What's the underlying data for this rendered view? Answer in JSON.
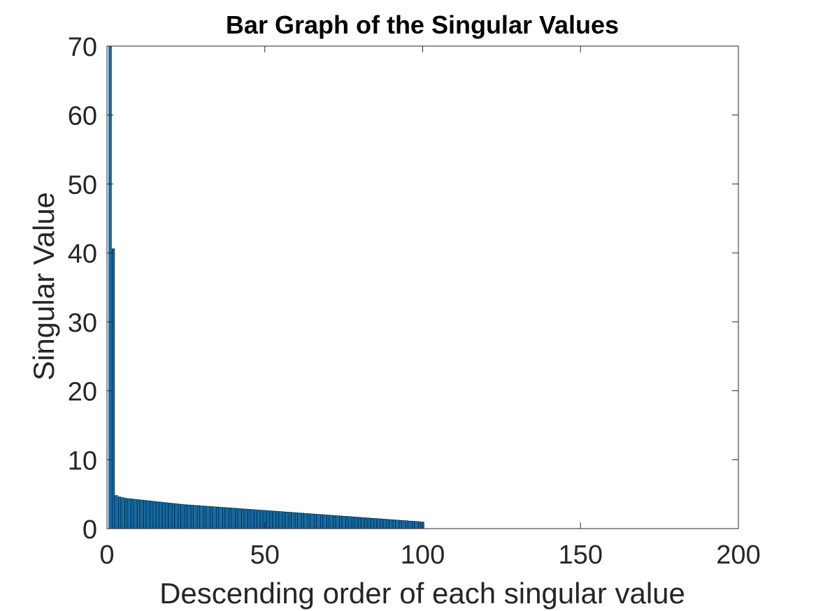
{
  "chart_data": {
    "type": "bar",
    "title": "Bar Graph of the Singular Values",
    "xlabel": "Descending order of each singular value",
    "ylabel": "Singular Value",
    "xlim": [
      0,
      200
    ],
    "ylim": [
      0,
      70
    ],
    "xticks": [
      0,
      50,
      100,
      150,
      200
    ],
    "yticks": [
      0,
      10,
      20,
      30,
      40,
      50,
      60,
      70
    ],
    "grid": false,
    "colors": {
      "bar_fill": "#0072BD",
      "bar_edge": "#000000",
      "axis": "#262626"
    },
    "x": [
      1,
      2,
      3,
      4,
      5,
      6,
      7,
      8,
      9,
      10,
      11,
      12,
      13,
      14,
      15,
      16,
      17,
      18,
      19,
      20,
      21,
      22,
      23,
      24,
      25,
      26,
      27,
      28,
      29,
      30,
      31,
      32,
      33,
      34,
      35,
      36,
      37,
      38,
      39,
      40,
      41,
      42,
      43,
      44,
      45,
      46,
      47,
      48,
      49,
      50,
      51,
      52,
      53,
      54,
      55,
      56,
      57,
      58,
      59,
      60,
      61,
      62,
      63,
      64,
      65,
      66,
      67,
      68,
      69,
      70,
      71,
      72,
      73,
      74,
      75,
      76,
      77,
      78,
      79,
      80,
      81,
      82,
      83,
      84,
      85,
      86,
      87,
      88,
      89,
      90,
      91,
      92,
      93,
      94,
      95,
      96,
      97,
      98,
      99,
      100
    ],
    "values": [
      70.5,
      40.6,
      4.8,
      4.6,
      4.5,
      4.4,
      4.35,
      4.3,
      4.25,
      4.2,
      4.15,
      4.1,
      4.05,
      4.0,
      3.95,
      3.9,
      3.85,
      3.8,
      3.75,
      3.7,
      3.65,
      3.6,
      3.55,
      3.5,
      3.47,
      3.44,
      3.4,
      3.37,
      3.34,
      3.3,
      3.27,
      3.24,
      3.2,
      3.17,
      3.14,
      3.1,
      3.07,
      3.04,
      3.0,
      2.97,
      2.94,
      2.9,
      2.87,
      2.84,
      2.8,
      2.77,
      2.74,
      2.7,
      2.67,
      2.64,
      2.6,
      2.57,
      2.54,
      2.5,
      2.47,
      2.44,
      2.4,
      2.37,
      2.34,
      2.3,
      2.27,
      2.24,
      2.2,
      2.17,
      2.14,
      2.1,
      2.07,
      2.04,
      2.0,
      1.97,
      1.94,
      1.9,
      1.87,
      1.84,
      1.8,
      1.77,
      1.74,
      1.7,
      1.67,
      1.64,
      1.6,
      1.57,
      1.54,
      1.5,
      1.47,
      1.44,
      1.4,
      1.37,
      1.34,
      1.3,
      1.27,
      1.24,
      1.2,
      1.17,
      1.14,
      1.1,
      1.07,
      1.04,
      1.0,
      0.95
    ]
  }
}
